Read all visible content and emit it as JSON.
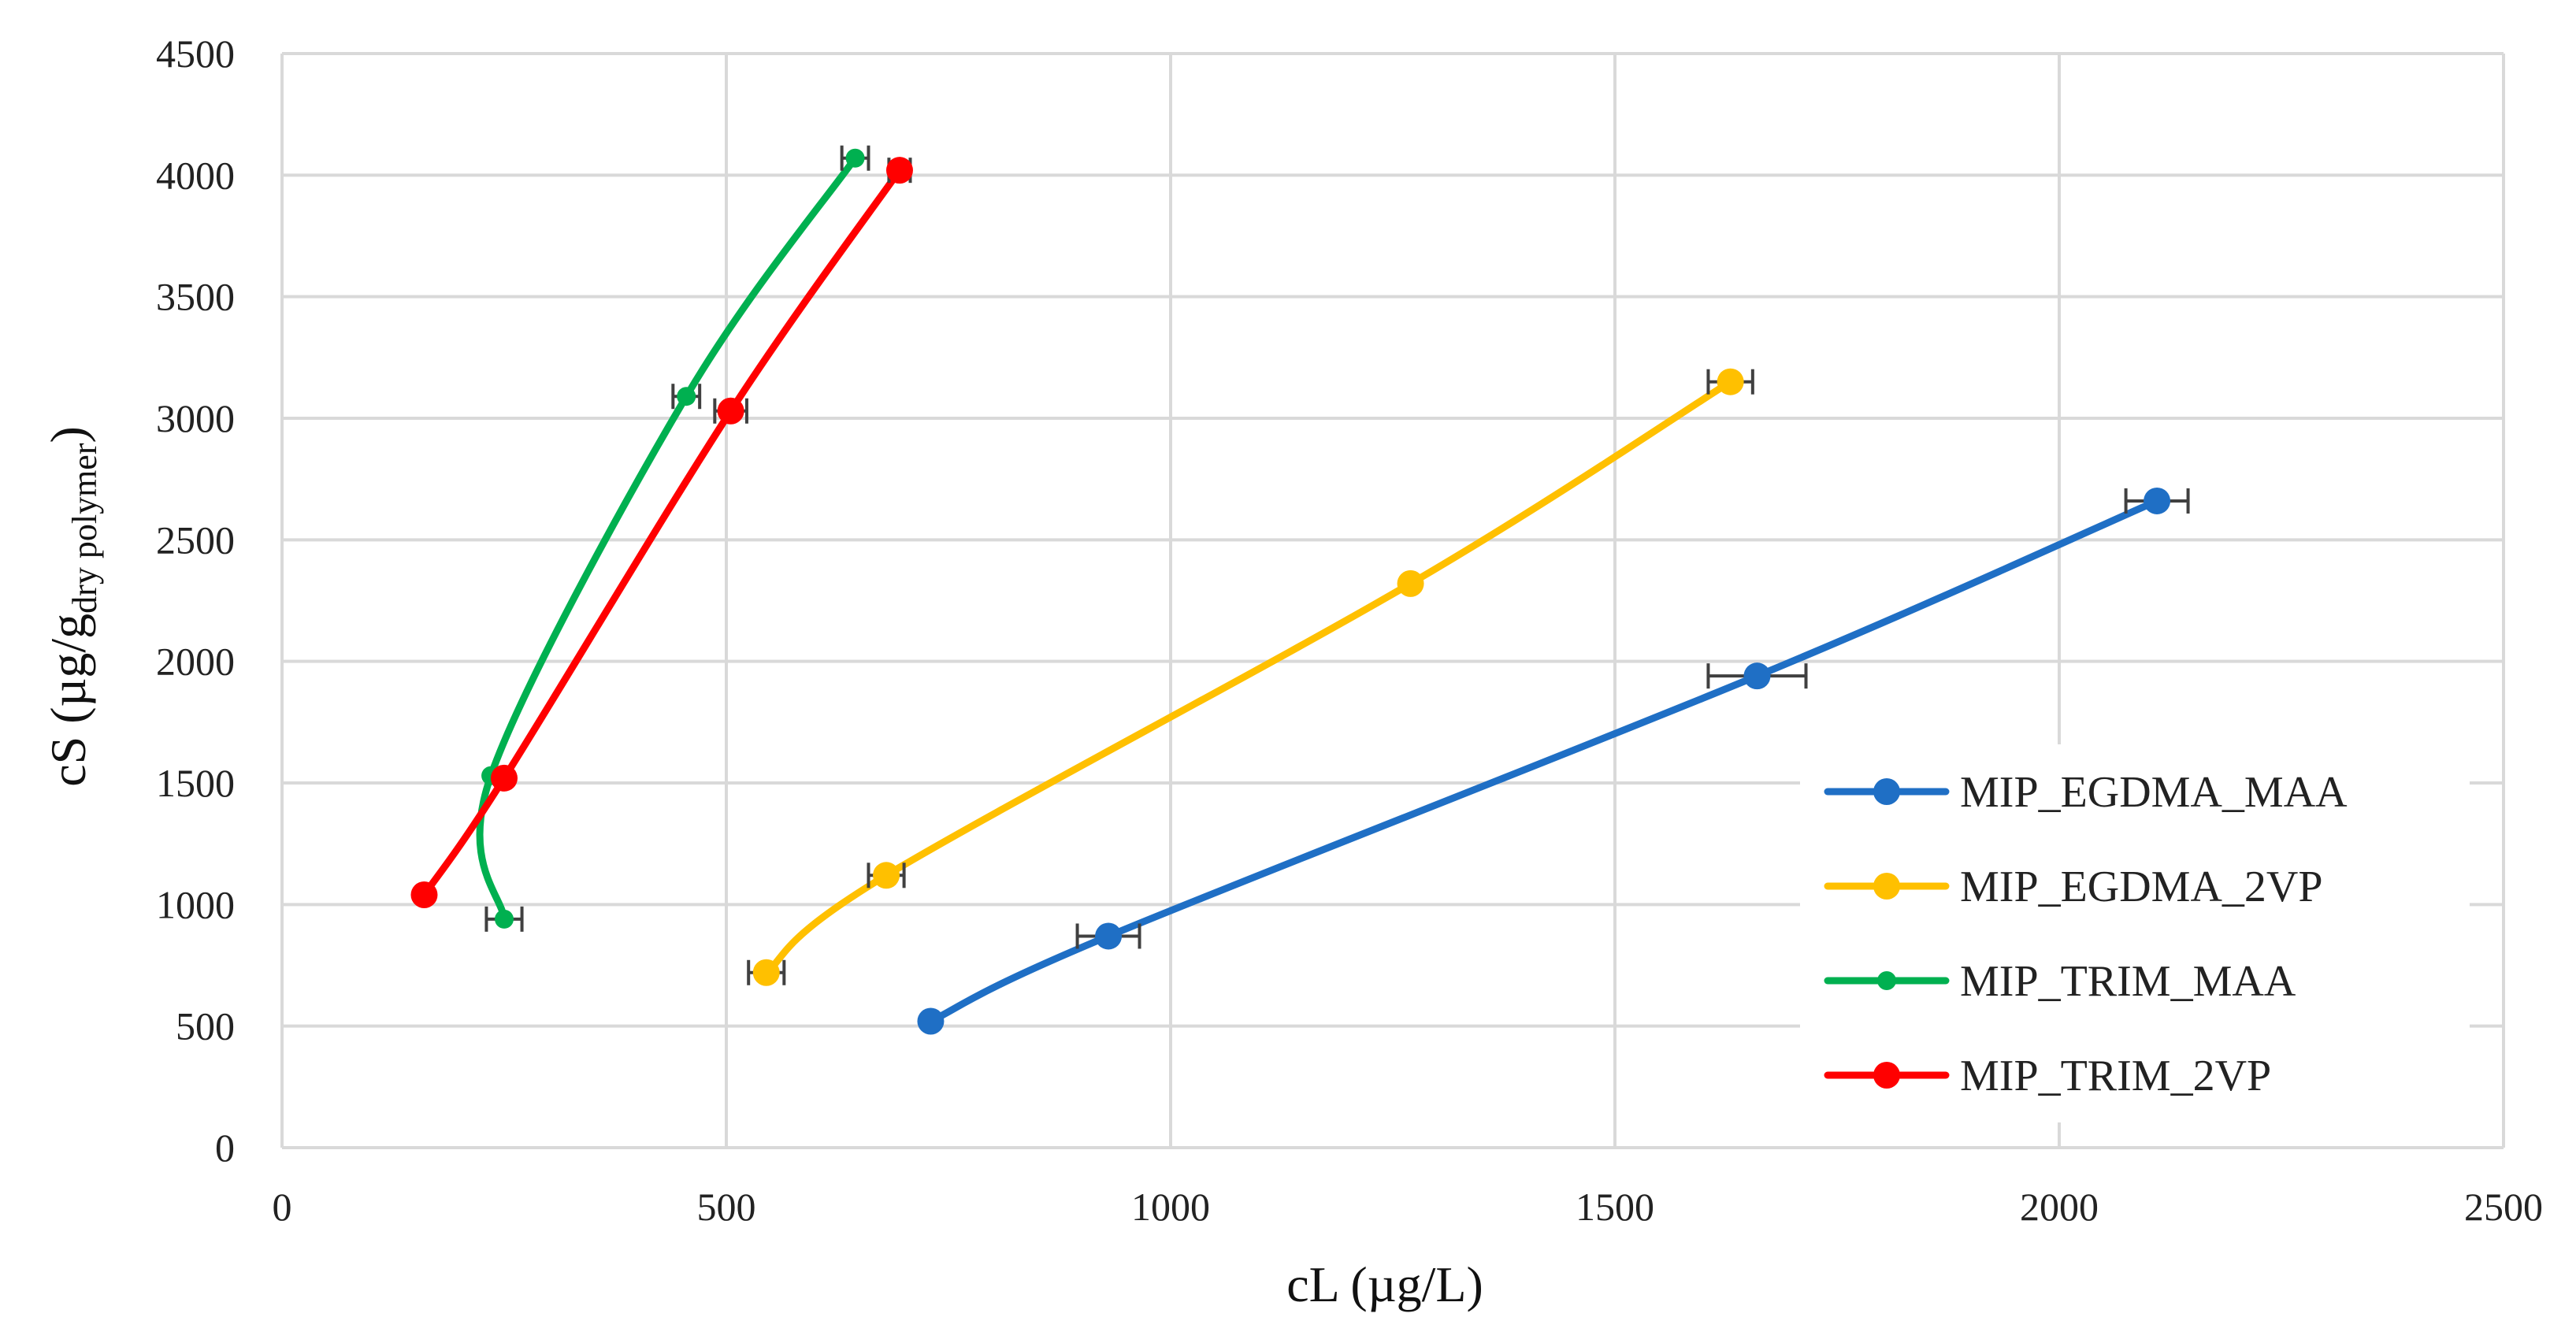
{
  "chart_data": {
    "type": "line",
    "xlabel": "cL (µg/L)",
    "ylabel_main": "cS (µg/g",
    "ylabel_sub": "dry polymer",
    "ylabel_close": ")",
    "xlim": [
      0,
      2500
    ],
    "ylim": [
      0,
      4500
    ],
    "xticks": [
      "0",
      "500",
      "1000",
      "1500",
      "2000",
      "2500"
    ],
    "yticks": [
      "0",
      "500",
      "1000",
      "1500",
      "2000",
      "2500",
      "3000",
      "3500",
      "4000",
      "4500"
    ],
    "grid": true,
    "legend_position": "right",
    "series": [
      {
        "name": "MIP_EGDMA_MAA",
        "color": "#1F6FC5",
        "x": [
          730,
          930,
          1660,
          2110
        ],
        "y": [
          520,
          870,
          1940,
          2660
        ],
        "xerr": [
          0,
          35,
          55,
          35
        ]
      },
      {
        "name": "MIP_EGDMA_2VP",
        "color": "#FFC000",
        "x": [
          545,
          680,
          1270,
          1630
        ],
        "y": [
          720,
          1120,
          2320,
          3150
        ],
        "xerr": [
          20,
          20,
          0,
          25
        ]
      },
      {
        "name": "MIP_TRIM_MAA",
        "color": "#00B050",
        "x": [
          250,
          235,
          455,
          645
        ],
        "y": [
          940,
          1530,
          3090,
          4070
        ],
        "xerr": [
          20,
          0,
          15,
          15
        ]
      },
      {
        "name": "MIP_TRIM_2VP",
        "color": "#FF0000",
        "x": [
          160,
          250,
          505,
          695
        ],
        "y": [
          1040,
          1520,
          3030,
          4020
        ],
        "xerr": [
          0,
          0,
          18,
          12
        ]
      }
    ]
  }
}
